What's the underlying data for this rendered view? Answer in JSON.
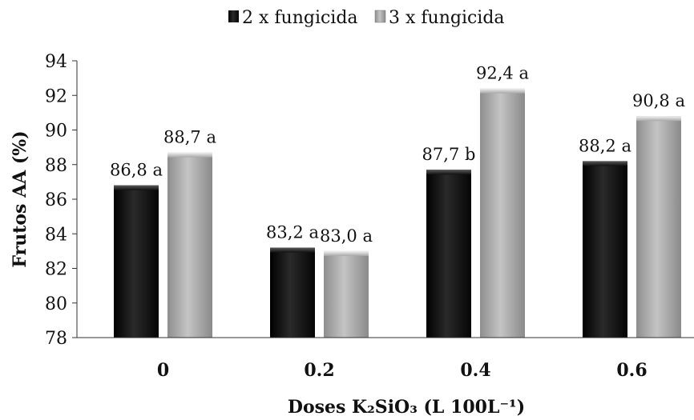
{
  "chart_data": {
    "type": "bar",
    "xlabel": "Doses K₂SiO₃ (L 100L⁻¹)",
    "ylabel": "Frutos AA (%)",
    "ylim": [
      78,
      94
    ],
    "yticks": [
      78,
      80,
      82,
      84,
      86,
      88,
      90,
      92,
      94
    ],
    "categories": [
      "0",
      "0.2",
      "0.4",
      "0.6"
    ],
    "legend_position": "top",
    "grid": false,
    "series": [
      {
        "name": "2 x fungicida",
        "color": "#141414",
        "values": [
          86.8,
          83.2,
          87.7,
          88.2
        ],
        "labels": [
          "86,8 a",
          "83,2 a",
          "87,7 b",
          "88,2 a"
        ]
      },
      {
        "name": "3 x fungicida",
        "color": "#a8a8a8",
        "values": [
          88.7,
          83.0,
          92.4,
          90.8
        ],
        "labels": [
          "88,7 a",
          "83,0 a",
          "92,4 a",
          "90,8 a"
        ]
      }
    ]
  }
}
